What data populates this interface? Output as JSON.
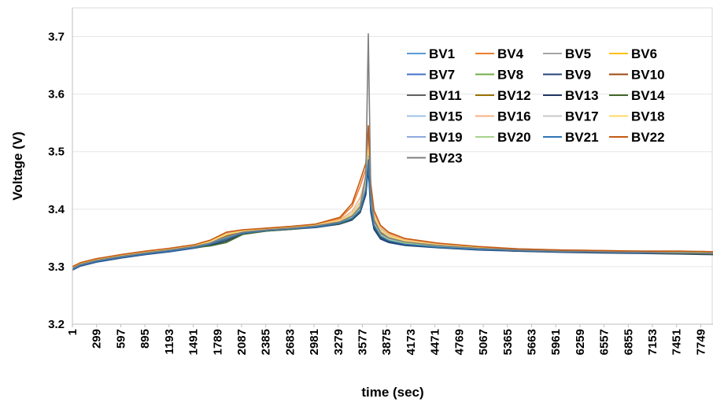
{
  "chart_data": {
    "type": "line",
    "title": "",
    "xlabel": "time (sec)",
    "ylabel": "Voltage (V)",
    "ylim": [
      3.2,
      3.75
    ],
    "yticks": [
      "3.2",
      "3.3",
      "3.4",
      "3.5",
      "3.6",
      "3.7"
    ],
    "ytick_values": [
      3.2,
      3.3,
      3.4,
      3.5,
      3.6,
      3.7
    ],
    "xlim": [
      1,
      7900
    ],
    "xticks": [
      "1",
      "299",
      "597",
      "895",
      "1193",
      "1491",
      "1789",
      "2087",
      "2385",
      "2683",
      "2981",
      "3279",
      "3577",
      "3875",
      "4173",
      "4471",
      "4769",
      "5067",
      "5365",
      "5663",
      "5961",
      "6259",
      "6557",
      "6855",
      "7153",
      "7451",
      "7749"
    ],
    "grid": "horizontal",
    "legend_position": "top-right",
    "x": [
      1,
      100,
      300,
      600,
      900,
      1200,
      1500,
      1700,
      1900,
      2100,
      2400,
      2700,
      3000,
      3300,
      3450,
      3550,
      3620,
      3650,
      3680,
      3720,
      3800,
      3900,
      4100,
      4500,
      5000,
      5500,
      6000,
      6500,
      7000,
      7500,
      7900
    ],
    "series": [
      {
        "name": "BV1",
        "color": "#5b9bd5",
        "values": [
          3.295,
          3.303,
          3.31,
          3.317,
          3.323,
          3.328,
          3.334,
          3.341,
          3.352,
          3.36,
          3.364,
          3.367,
          3.37,
          3.376,
          3.384,
          3.4,
          3.44,
          3.49,
          3.41,
          3.375,
          3.355,
          3.347,
          3.34,
          3.335,
          3.331,
          3.329,
          3.328,
          3.327,
          3.327,
          3.326,
          3.326
        ]
      },
      {
        "name": "BV4",
        "color": "#ed7d31",
        "values": [
          3.3,
          3.306,
          3.313,
          3.32,
          3.326,
          3.331,
          3.337,
          3.345,
          3.358,
          3.363,
          3.366,
          3.369,
          3.373,
          3.384,
          3.405,
          3.44,
          3.47,
          3.54,
          3.44,
          3.395,
          3.37,
          3.358,
          3.348,
          3.34,
          3.334,
          3.33,
          3.328,
          3.327,
          3.326,
          3.326,
          3.325
        ]
      },
      {
        "name": "BV5",
        "color": "#a5a5a5",
        "values": [
          3.297,
          3.304,
          3.311,
          3.318,
          3.324,
          3.329,
          3.335,
          3.342,
          3.355,
          3.361,
          3.365,
          3.368,
          3.371,
          3.378,
          3.388,
          3.405,
          3.45,
          3.53,
          3.42,
          3.38,
          3.36,
          3.35,
          3.342,
          3.336,
          3.332,
          3.329,
          3.328,
          3.327,
          3.326,
          3.326,
          3.325
        ]
      },
      {
        "name": "BV6",
        "color": "#ffc000",
        "values": [
          3.298,
          3.305,
          3.312,
          3.319,
          3.325,
          3.33,
          3.336,
          3.343,
          3.354,
          3.362,
          3.365,
          3.368,
          3.371,
          3.379,
          3.39,
          3.408,
          3.445,
          3.5,
          3.425,
          3.385,
          3.362,
          3.352,
          3.344,
          3.337,
          3.332,
          3.33,
          3.328,
          3.327,
          3.326,
          3.326,
          3.325
        ]
      },
      {
        "name": "BV7",
        "color": "#4472c4",
        "values": [
          3.294,
          3.302,
          3.309,
          3.316,
          3.322,
          3.327,
          3.333,
          3.338,
          3.347,
          3.358,
          3.363,
          3.366,
          3.369,
          3.375,
          3.382,
          3.396,
          3.43,
          3.48,
          3.4,
          3.368,
          3.35,
          3.344,
          3.338,
          3.334,
          3.33,
          3.328,
          3.327,
          3.326,
          3.326,
          3.325,
          3.325
        ]
      },
      {
        "name": "BV8",
        "color": "#70ad47",
        "values": [
          3.296,
          3.303,
          3.31,
          3.317,
          3.323,
          3.328,
          3.333,
          3.337,
          3.344,
          3.357,
          3.363,
          3.366,
          3.37,
          3.376,
          3.384,
          3.398,
          3.435,
          3.485,
          3.405,
          3.372,
          3.353,
          3.346,
          3.34,
          3.335,
          3.331,
          3.329,
          3.328,
          3.327,
          3.326,
          3.326,
          3.325
        ]
      },
      {
        "name": "BV9",
        "color": "#264478",
        "values": [
          3.294,
          3.301,
          3.308,
          3.315,
          3.321,
          3.326,
          3.332,
          3.337,
          3.345,
          3.357,
          3.362,
          3.365,
          3.368,
          3.374,
          3.381,
          3.394,
          3.425,
          3.47,
          3.395,
          3.365,
          3.348,
          3.342,
          3.337,
          3.333,
          3.329,
          3.327,
          3.326,
          3.325,
          3.324,
          3.323,
          3.322
        ]
      },
      {
        "name": "BV10",
        "color": "#9e480e",
        "values": [
          3.297,
          3.304,
          3.311,
          3.318,
          3.324,
          3.329,
          3.335,
          3.342,
          3.353,
          3.361,
          3.365,
          3.368,
          3.371,
          3.378,
          3.387,
          3.402,
          3.44,
          3.495,
          3.415,
          3.378,
          3.357,
          3.349,
          3.342,
          3.336,
          3.332,
          3.329,
          3.327,
          3.326,
          3.325,
          3.324,
          3.323
        ]
      },
      {
        "name": "BV11",
        "color": "#636363",
        "values": [
          3.296,
          3.303,
          3.31,
          3.317,
          3.323,
          3.328,
          3.334,
          3.34,
          3.35,
          3.359,
          3.364,
          3.367,
          3.37,
          3.377,
          3.385,
          3.4,
          3.438,
          3.49,
          3.41,
          3.375,
          3.355,
          3.347,
          3.34,
          3.335,
          3.331,
          3.328,
          3.326,
          3.325,
          3.324,
          3.323,
          3.322
        ]
      },
      {
        "name": "BV12",
        "color": "#997300",
        "values": [
          3.297,
          3.304,
          3.311,
          3.318,
          3.324,
          3.329,
          3.334,
          3.339,
          3.348,
          3.358,
          3.363,
          3.366,
          3.37,
          3.376,
          3.384,
          3.399,
          3.436,
          3.488,
          3.408,
          3.374,
          3.354,
          3.346,
          3.34,
          3.335,
          3.331,
          3.328,
          3.327,
          3.326,
          3.325,
          3.324,
          3.323
        ]
      },
      {
        "name": "BV13",
        "color": "#203864",
        "values": [
          3.295,
          3.302,
          3.309,
          3.316,
          3.322,
          3.327,
          3.333,
          3.339,
          3.349,
          3.358,
          3.363,
          3.366,
          3.369,
          3.375,
          3.383,
          3.397,
          3.432,
          3.482,
          3.402,
          3.37,
          3.351,
          3.344,
          3.338,
          3.334,
          3.33,
          3.327,
          3.325,
          3.324,
          3.323,
          3.322,
          3.321
        ]
      },
      {
        "name": "BV14",
        "color": "#43682b",
        "values": [
          3.296,
          3.303,
          3.31,
          3.317,
          3.323,
          3.328,
          3.333,
          3.336,
          3.342,
          3.356,
          3.362,
          3.365,
          3.369,
          3.375,
          3.383,
          3.397,
          3.433,
          3.484,
          3.403,
          3.371,
          3.352,
          3.345,
          3.339,
          3.334,
          3.33,
          3.328,
          3.326,
          3.325,
          3.324,
          3.323,
          3.322
        ]
      },
      {
        "name": "BV15",
        "color": "#9dc3e6",
        "values": [
          3.298,
          3.305,
          3.312,
          3.319,
          3.325,
          3.33,
          3.336,
          3.344,
          3.357,
          3.362,
          3.366,
          3.369,
          3.372,
          3.38,
          3.392,
          3.412,
          3.45,
          3.51,
          3.428,
          3.388,
          3.366,
          3.355,
          3.346,
          3.339,
          3.334,
          3.331,
          3.329,
          3.328,
          3.327,
          3.327,
          3.326
        ]
      },
      {
        "name": "BV16",
        "color": "#f4b183",
        "values": [
          3.299,
          3.306,
          3.313,
          3.32,
          3.326,
          3.331,
          3.337,
          3.345,
          3.359,
          3.363,
          3.367,
          3.37,
          3.373,
          3.382,
          3.396,
          3.42,
          3.455,
          3.515,
          3.432,
          3.392,
          3.369,
          3.357,
          3.347,
          3.34,
          3.334,
          3.331,
          3.329,
          3.328,
          3.327,
          3.327,
          3.326
        ]
      },
      {
        "name": "BV17",
        "color": "#c9c9c9",
        "values": [
          3.298,
          3.305,
          3.312,
          3.319,
          3.325,
          3.33,
          3.336,
          3.343,
          3.356,
          3.362,
          3.366,
          3.369,
          3.372,
          3.379,
          3.39,
          3.408,
          3.448,
          3.505,
          3.422,
          3.384,
          3.363,
          3.353,
          3.345,
          3.338,
          3.333,
          3.33,
          3.328,
          3.327,
          3.326,
          3.326,
          3.325
        ]
      },
      {
        "name": "BV18",
        "color": "#ffd966",
        "values": [
          3.298,
          3.305,
          3.312,
          3.319,
          3.325,
          3.33,
          3.336,
          3.344,
          3.356,
          3.362,
          3.366,
          3.369,
          3.372,
          3.38,
          3.391,
          3.41,
          3.45,
          3.508,
          3.425,
          3.386,
          3.364,
          3.354,
          3.345,
          3.338,
          3.333,
          3.33,
          3.328,
          3.327,
          3.326,
          3.326,
          3.325
        ]
      },
      {
        "name": "BV19",
        "color": "#8faadc",
        "values": [
          3.296,
          3.303,
          3.31,
          3.317,
          3.323,
          3.328,
          3.334,
          3.341,
          3.352,
          3.36,
          3.364,
          3.367,
          3.37,
          3.377,
          3.386,
          3.401,
          3.44,
          3.492,
          3.412,
          3.376,
          3.356,
          3.348,
          3.341,
          3.336,
          3.331,
          3.329,
          3.327,
          3.326,
          3.325,
          3.325,
          3.324
        ]
      },
      {
        "name": "BV20",
        "color": "#a9d18e",
        "values": [
          3.297,
          3.304,
          3.311,
          3.318,
          3.324,
          3.329,
          3.334,
          3.34,
          3.35,
          3.359,
          3.364,
          3.367,
          3.37,
          3.377,
          3.385,
          3.4,
          3.437,
          3.489,
          3.409,
          3.374,
          3.355,
          3.347,
          3.341,
          3.336,
          3.332,
          3.329,
          3.328,
          3.327,
          3.326,
          3.325,
          3.325
        ]
      },
      {
        "name": "BV21",
        "color": "#2e75b6",
        "values": [
          3.295,
          3.302,
          3.309,
          3.316,
          3.322,
          3.327,
          3.333,
          3.339,
          3.349,
          3.358,
          3.363,
          3.366,
          3.369,
          3.376,
          3.384,
          3.398,
          3.434,
          3.486,
          3.405,
          3.372,
          3.353,
          3.345,
          3.339,
          3.334,
          3.33,
          3.328,
          3.326,
          3.325,
          3.324,
          3.324,
          3.323
        ]
      },
      {
        "name": "BV22",
        "color": "#c55a11",
        "values": [
          3.3,
          3.307,
          3.314,
          3.321,
          3.327,
          3.332,
          3.338,
          3.346,
          3.36,
          3.364,
          3.367,
          3.37,
          3.374,
          3.386,
          3.41,
          3.45,
          3.48,
          3.545,
          3.445,
          3.398,
          3.372,
          3.36,
          3.349,
          3.341,
          3.335,
          3.331,
          3.329,
          3.328,
          3.327,
          3.327,
          3.326
        ]
      },
      {
        "name": "BV23",
        "color": "#7f7f7f",
        "values": [
          3.297,
          3.304,
          3.311,
          3.318,
          3.324,
          3.329,
          3.335,
          3.341,
          3.352,
          3.36,
          3.364,
          3.367,
          3.371,
          3.378,
          3.388,
          3.404,
          3.46,
          3.705,
          3.43,
          3.382,
          3.36,
          3.35,
          3.343,
          3.337,
          3.332,
          3.329,
          3.327,
          3.326,
          3.325,
          3.324,
          3.323
        ]
      }
    ]
  }
}
